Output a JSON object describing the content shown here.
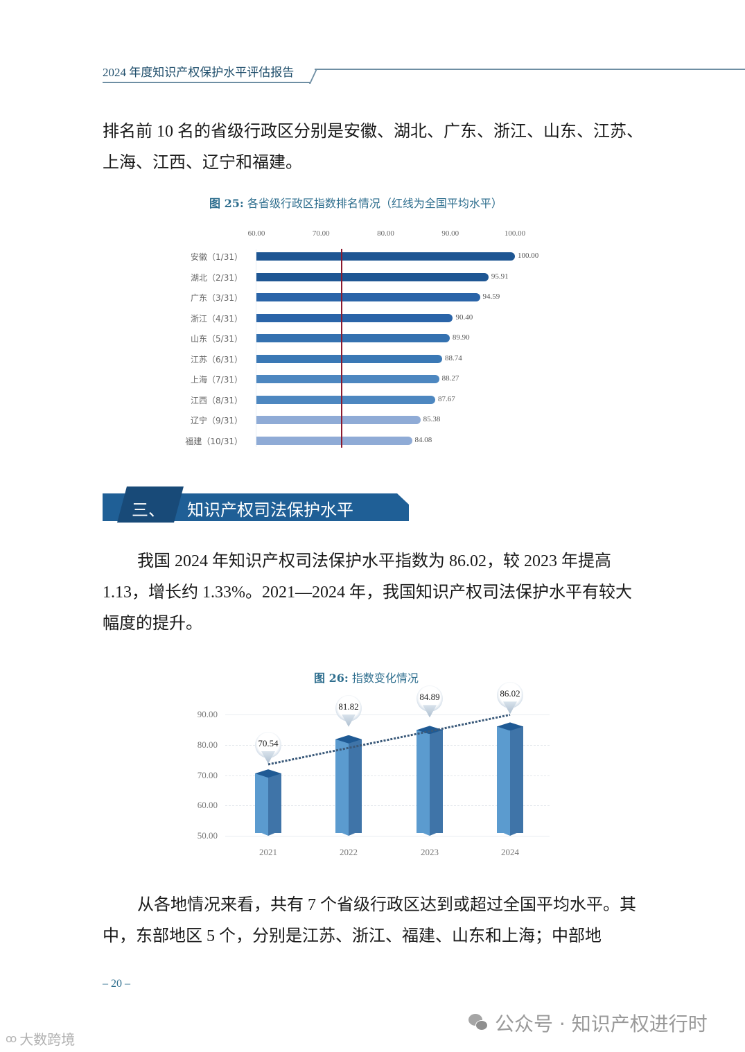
{
  "header": {
    "title": "2024 年度知识产权保护水平评估报告"
  },
  "paragraph_1": "排名前 10 名的省级行政区分别是安徽、湖北、广东、浙江、山东、江苏、上海、江西、辽宁和福建。",
  "figure_25": {
    "label": "图 25:",
    "title": "各省级行政区指数排名情况（红线为全国平均水平）"
  },
  "section_3": {
    "number": "三、",
    "title": "知识产权司法保护水平"
  },
  "paragraph_2": "我国 2024 年知识产权司法保护水平指数为 86.02，较 2023 年提高 1.13，增长约 1.33%。2021—2024 年，我国知识产权司法保护水平有较大幅度的提升。",
  "figure_26": {
    "label": "图 26:",
    "title": "指数变化情况"
  },
  "paragraph_3": "从各地情况来看，共有 7 个省级行政区达到或超过全国平均水平。其中，东部地区 5 个，分别是江苏、浙江、福建、山东和上海；中部地",
  "page_number": "– 20 –",
  "watermarks": {
    "wechat": "公众号 · 知识产权进行时",
    "brand": "大数跨境"
  },
  "colors": {
    "accent": "#1f5f96",
    "heading_text": "#2e6e8e",
    "avg_line": "#8b1a2e"
  },
  "chart_data": [
    {
      "type": "bar",
      "orientation": "horizontal",
      "title": "图 25: 各省级行政区指数排名情况（红线为全国平均水平）",
      "xlabel": "",
      "ylabel": "",
      "xlim": [
        60,
        100
      ],
      "x_ticks": [
        "60.00",
        "70.00",
        "80.00",
        "90.00",
        "100.00"
      ],
      "x_axis_position": "top",
      "grid": false,
      "categories": [
        "安徽（1/31）",
        "湖北（2/31）",
        "广东（3/31）",
        "浙江（4/31）",
        "山东（5/31）",
        "江苏（6/31）",
        "上海（7/31）",
        "江西（8/31）",
        "辽宁（9/31）",
        "福建（10/31）"
      ],
      "values": [
        100.0,
        95.91,
        94.59,
        90.4,
        89.9,
        88.74,
        88.27,
        87.67,
        85.38,
        84.08
      ],
      "value_labels": [
        "100.00",
        "95.91",
        "94.59",
        "90.40",
        "89.90",
        "88.74",
        "88.27",
        "87.67",
        "85.38",
        "84.08"
      ],
      "bar_colors": [
        "#1e5693",
        "#1e5693",
        "#2a64a8",
        "#2a64a8",
        "#3471b0",
        "#3a78b5",
        "#4d87c0",
        "#4d87c0",
        "#8fabd6",
        "#8fabd6"
      ],
      "annotations": [
        {
          "type": "vertical-line",
          "x": 73.2,
          "color": "#8b1a2e",
          "meaning": "全国平均水平"
        }
      ]
    },
    {
      "type": "bar",
      "style": "3d-column",
      "title": "图 26: 指数变化情况",
      "xlabel": "",
      "ylabel": "",
      "ylim": [
        50,
        90
      ],
      "y_ticks": [
        "50.00",
        "60.00",
        "70.00",
        "80.00",
        "90.00"
      ],
      "grid": true,
      "categories": [
        "2021",
        "2022",
        "2023",
        "2024"
      ],
      "values": [
        70.54,
        81.82,
        84.89,
        86.02
      ],
      "value_labels": [
        "70.54",
        "81.82",
        "84.89",
        "86.02"
      ],
      "trendline": {
        "style": "dotted",
        "color": "#3b5a7a"
      }
    }
  ]
}
